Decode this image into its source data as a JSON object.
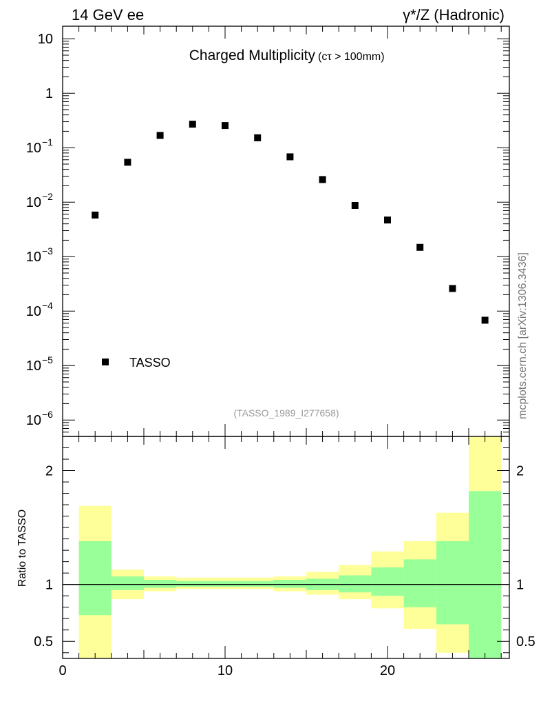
{
  "header": {
    "energy_label": "14 GeV ee",
    "process_label": "γ*/Z (Hadronic)"
  },
  "plot": {
    "title": "Charged Multiplicity",
    "title_cut": "(cτ > 100mm)",
    "analysis_ref": "(TASSO_1989_I277658)",
    "side_credit": "mcplots.cern.ch [arXiv:1306.3436]",
    "legend_label": "TASSO",
    "ratio_ylabel": "Ratio to TASSO"
  },
  "colors": {
    "band_outer": "#ffff99",
    "band_inner": "#99ff99",
    "marker": "#000000",
    "reference_line": "#000000"
  },
  "chart_data": {
    "type": "scatter",
    "main": {
      "yscale": "log",
      "ylim": [
        5e-07,
        17
      ],
      "y_ticks": [
        {
          "v": 10,
          "label": "10"
        },
        {
          "v": 1,
          "label": "1"
        },
        {
          "v": 0.1,
          "base": "10",
          "exp": "−1"
        },
        {
          "v": 0.01,
          "base": "10",
          "exp": "−2"
        },
        {
          "v": 0.001,
          "base": "10",
          "exp": "−3"
        },
        {
          "v": 0.0001,
          "base": "10",
          "exp": "−4"
        },
        {
          "v": 1e-05,
          "base": "10",
          "exp": "−5"
        },
        {
          "v": 1e-06,
          "base": "10",
          "exp": "−6"
        }
      ],
      "series": [
        {
          "name": "TASSO",
          "x": [
            2,
            4,
            6,
            8,
            10,
            12,
            14,
            16,
            18,
            20,
            22,
            24,
            26
          ],
          "y": [
            0.0058,
            0.054,
            0.168,
            0.27,
            0.255,
            0.152,
            0.068,
            0.026,
            0.0087,
            0.0047,
            0.00148,
            0.00026,
            6.8e-05
          ]
        }
      ]
    },
    "ratio": {
      "ylim": [
        0.35,
        2.3
      ],
      "y_ticks": [
        0.5,
        1,
        2
      ],
      "bin_edges": [
        1,
        3,
        5,
        7,
        9,
        11,
        13,
        15,
        17,
        19,
        21,
        23,
        25,
        27
      ],
      "inner_band": {
        "low": [
          0.73,
          0.95,
          0.97,
          0.98,
          0.98,
          0.98,
          0.97,
          0.95,
          0.93,
          0.9,
          0.8,
          0.65,
          0.3
        ],
        "high": [
          1.38,
          1.07,
          1.04,
          1.03,
          1.03,
          1.03,
          1.04,
          1.05,
          1.08,
          1.15,
          1.22,
          1.38,
          1.82
        ]
      },
      "outer_band": {
        "low": [
          0.3,
          0.87,
          0.94,
          0.96,
          0.96,
          0.96,
          0.94,
          0.91,
          0.87,
          0.79,
          0.61,
          0.4,
          0.3
        ],
        "high": [
          1.69,
          1.13,
          1.07,
          1.06,
          1.06,
          1.06,
          1.07,
          1.11,
          1.17,
          1.29,
          1.38,
          1.63,
          2.35
        ]
      }
    },
    "x": {
      "lim": [
        0,
        27.5
      ],
      "ticks": [
        0,
        10,
        20
      ]
    }
  }
}
